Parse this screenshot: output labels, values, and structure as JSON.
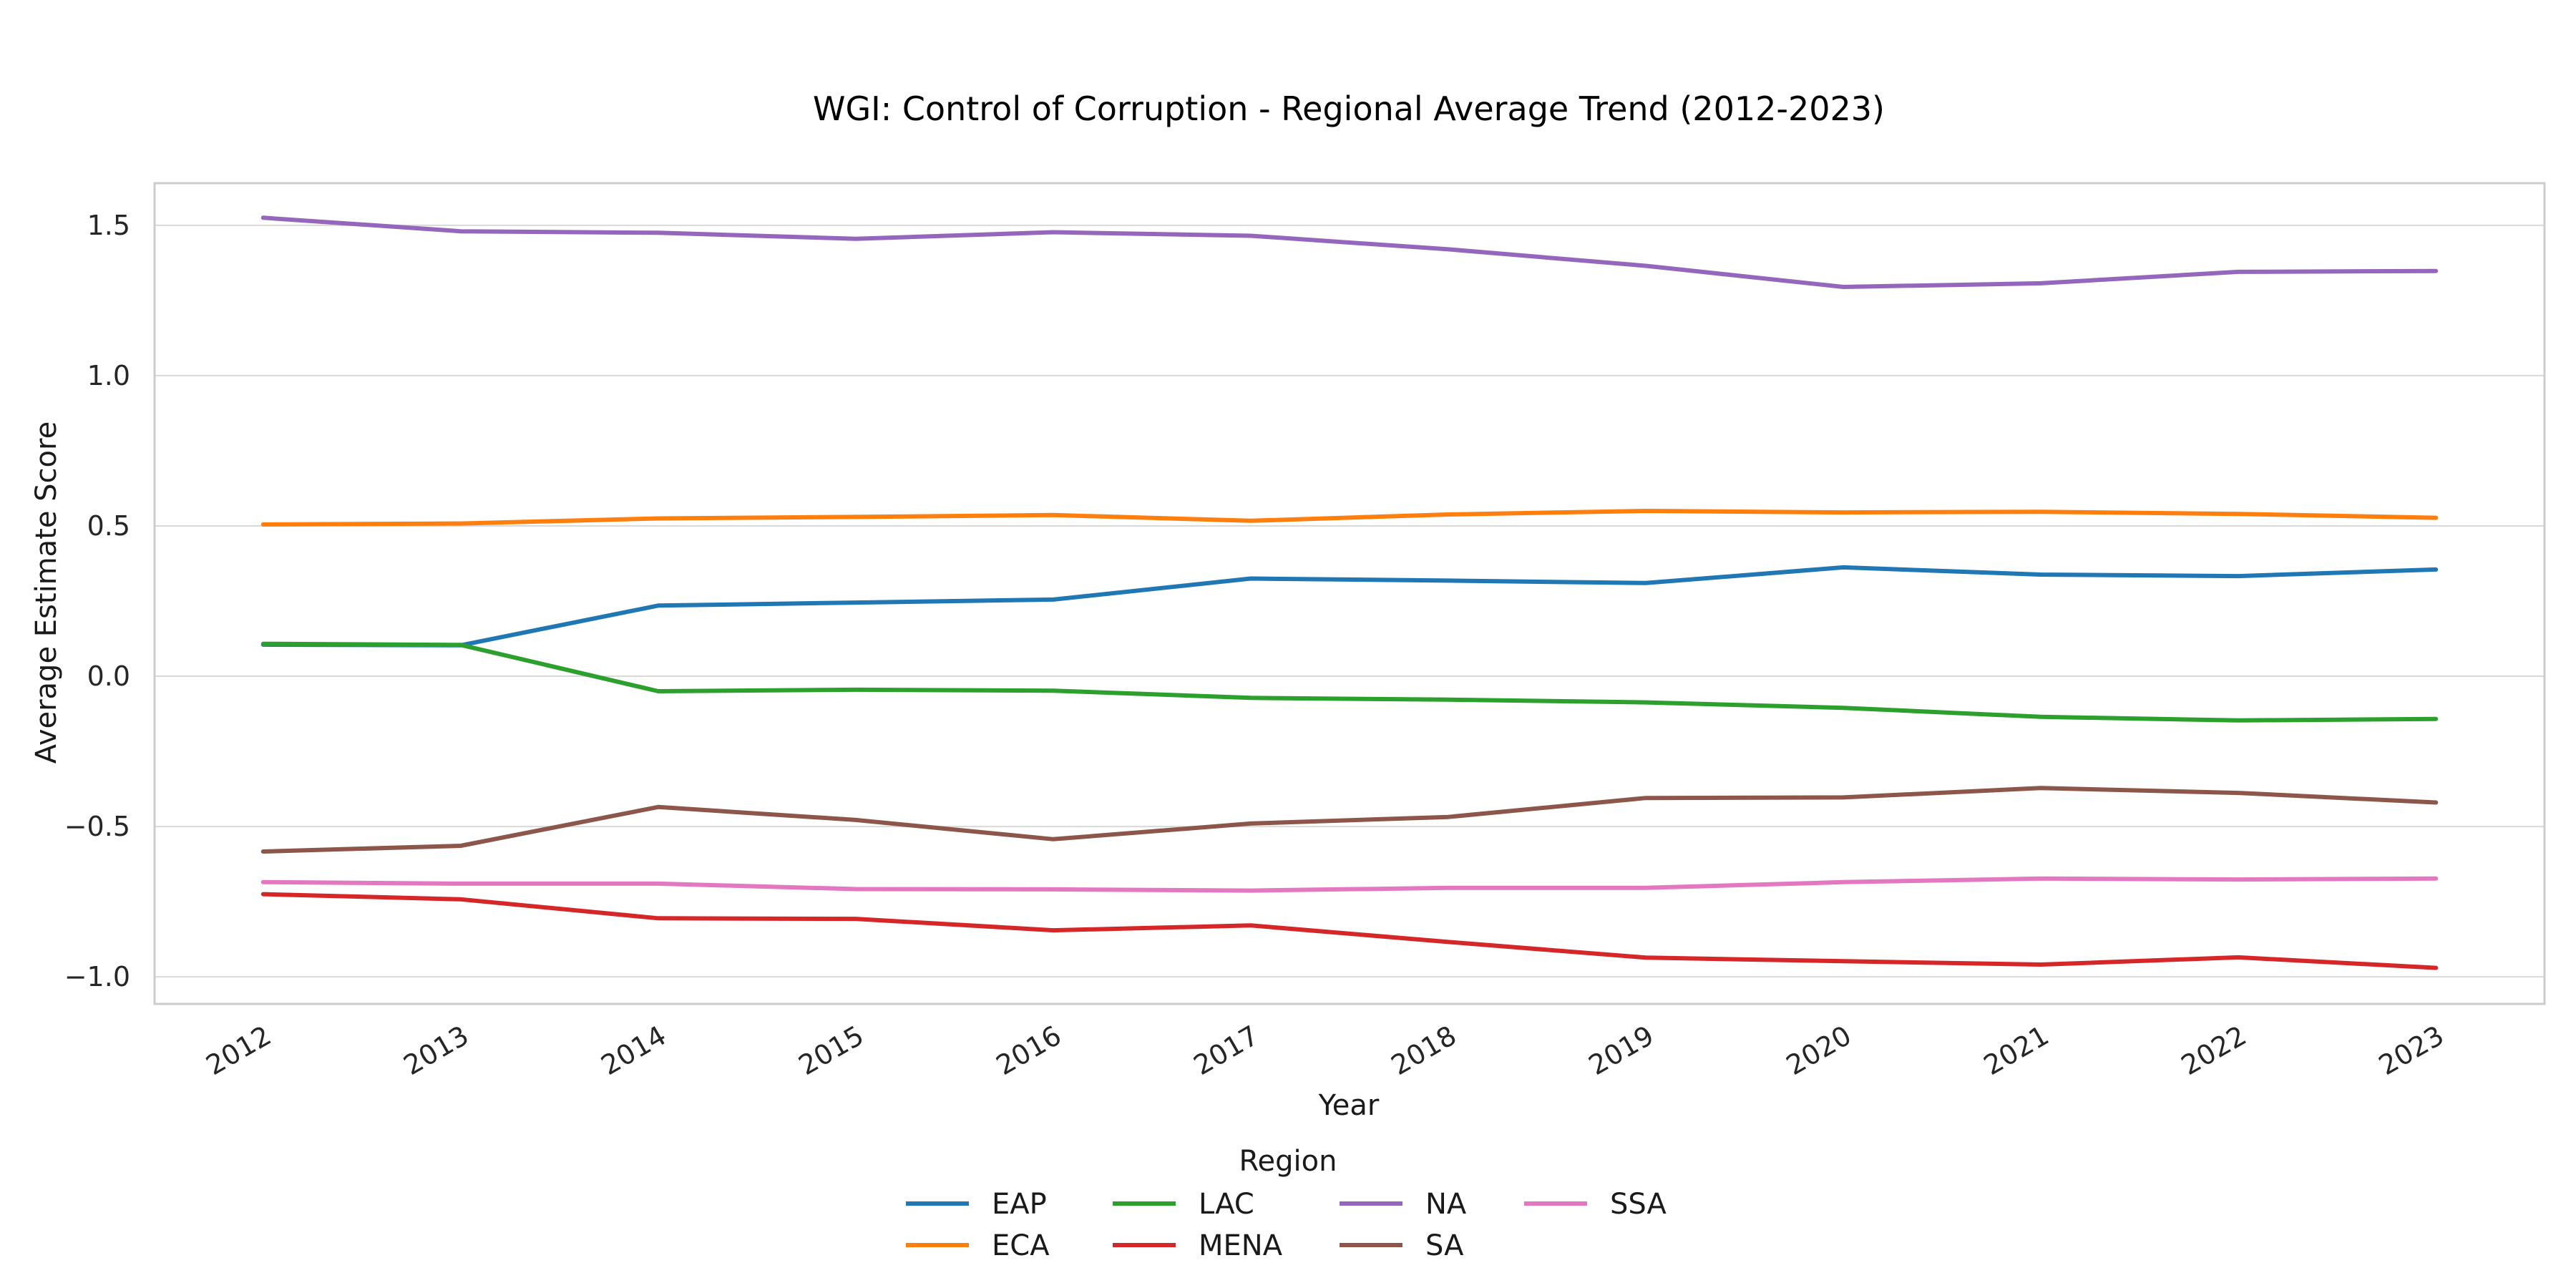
{
  "chart_data": {
    "type": "line",
    "title": "WGI: Control of Corruption - Regional Average Trend (2012-2023)",
    "xlabel": "Year",
    "ylabel": "Average Estimate Score",
    "x": [
      2012,
      2013,
      2014,
      2015,
      2016,
      2017,
      2018,
      2019,
      2020,
      2021,
      2022,
      2023
    ],
    "xlim": [
      2011.45,
      2023.55
    ],
    "ylim": [
      -1.09,
      1.64
    ],
    "yticks": [
      -1.0,
      -0.5,
      0.0,
      0.5,
      1.0,
      1.5
    ],
    "ytick_labels": [
      "−1.0",
      "−0.5",
      "0.0",
      "0.5",
      "1.0",
      "1.5"
    ],
    "grid": true,
    "legend": {
      "title": "Region",
      "placement": "bottom-center",
      "columns": 4
    },
    "series": [
      {
        "name": "EAP",
        "color": "#1f77b4",
        "values": [
          0.105,
          0.103,
          0.235,
          0.245,
          0.255,
          0.325,
          0.318,
          0.31,
          0.362,
          0.338,
          0.333,
          0.355
        ]
      },
      {
        "name": "ECA",
        "color": "#ff7f0e",
        "values": [
          0.505,
          0.508,
          0.525,
          0.53,
          0.536,
          0.517,
          0.538,
          0.55,
          0.545,
          0.547,
          0.54,
          0.527
        ]
      },
      {
        "name": "LAC",
        "color": "#2ca02c",
        "values": [
          0.108,
          0.104,
          -0.05,
          -0.045,
          -0.048,
          -0.072,
          -0.078,
          -0.087,
          -0.105,
          -0.135,
          -0.147,
          -0.142
        ]
      },
      {
        "name": "MENA",
        "color": "#d62728",
        "values": [
          -0.725,
          -0.742,
          -0.805,
          -0.807,
          -0.845,
          -0.829,
          -0.884,
          -0.936,
          -0.948,
          -0.959,
          -0.935,
          -0.97
        ]
      },
      {
        "name": "NA",
        "color": "#9467bd",
        "values": [
          1.525,
          1.48,
          1.475,
          1.455,
          1.477,
          1.465,
          1.42,
          1.365,
          1.295,
          1.307,
          1.345,
          1.348
        ]
      },
      {
        "name": "SA",
        "color": "#8c564b",
        "values": [
          -0.583,
          -0.564,
          -0.435,
          -0.478,
          -0.542,
          -0.49,
          -0.468,
          -0.405,
          -0.403,
          -0.372,
          -0.388,
          -0.42
        ]
      },
      {
        "name": "SSA",
        "color": "#e377c2",
        "values": [
          -0.685,
          -0.69,
          -0.69,
          -0.708,
          -0.709,
          -0.713,
          -0.704,
          -0.704,
          -0.685,
          -0.673,
          -0.676,
          -0.673
        ]
      }
    ]
  }
}
